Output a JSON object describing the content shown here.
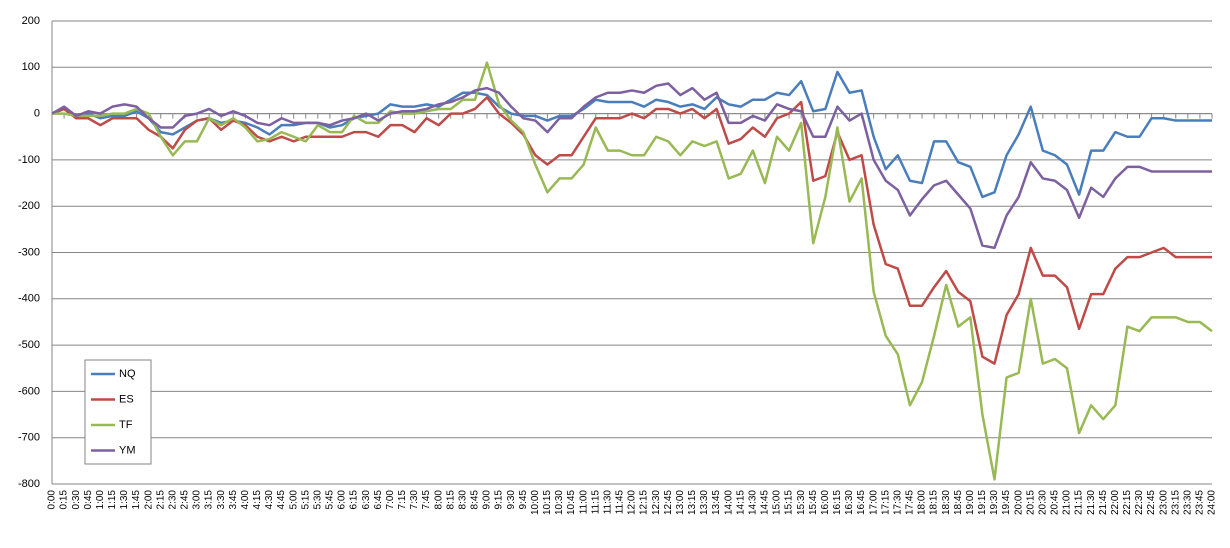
{
  "chart_data": {
    "type": "line",
    "categories": [
      "0:00",
      "0:15",
      "0:30",
      "0:45",
      "1:00",
      "1:15",
      "1:30",
      "1:45",
      "2:00",
      "2:15",
      "2:30",
      "2:45",
      "3:00",
      "3:15",
      "3:30",
      "3:45",
      "4:00",
      "4:15",
      "4:30",
      "4:45",
      "5:00",
      "5:15",
      "5:30",
      "5:45",
      "6:00",
      "6:15",
      "6:30",
      "6:45",
      "7:00",
      "7:15",
      "7:30",
      "7:45",
      "8:00",
      "8:15",
      "8:30",
      "8:45",
      "9:00",
      "9:15",
      "9:30",
      "9:45",
      "10:00",
      "10:15",
      "10:30",
      "10:45",
      "11:00",
      "11:15",
      "11:30",
      "11:45",
      "12:00",
      "12:15",
      "12:30",
      "12:45",
      "13:00",
      "13:15",
      "13:30",
      "13:45",
      "14:00",
      "14:15",
      "14:30",
      "14:45",
      "15:00",
      "15:15",
      "15:30",
      "15:45",
      "16:00",
      "16:15",
      "16:30",
      "16:45",
      "17:00",
      "17:15",
      "17:30",
      "17:45",
      "18:00",
      "18:15",
      "18:30",
      "18:45",
      "19:00",
      "19:15",
      "19:30",
      "19:45",
      "20:00",
      "20:15",
      "20:30",
      "20:45",
      "21:00",
      "21:15",
      "21:30",
      "21:45",
      "22:00",
      "22:15",
      "22:30",
      "22:45",
      "23:00",
      "23:15",
      "23:30",
      "23:45",
      "24:00"
    ],
    "series": [
      {
        "name": "NQ",
        "color": "#4a7ebb",
        "values": [
          0,
          10,
          -5,
          0,
          -10,
          -5,
          -5,
          5,
          -10,
          -40,
          -45,
          -30,
          -15,
          -10,
          -20,
          -15,
          -20,
          -30,
          -45,
          -25,
          -25,
          -20,
          -20,
          -30,
          -25,
          -10,
          -5,
          0,
          20,
          15,
          15,
          20,
          15,
          30,
          45,
          45,
          40,
          15,
          0,
          -5,
          -5,
          -15,
          -5,
          -5,
          10,
          30,
          25,
          25,
          25,
          15,
          30,
          25,
          15,
          20,
          10,
          35,
          20,
          15,
          30,
          30,
          45,
          40,
          70,
          5,
          10,
          90,
          45,
          50,
          -50,
          -120,
          -90,
          -145,
          -150,
          -60,
          -60,
          -105,
          -115,
          -180,
          -170,
          -90,
          -45,
          15,
          -80,
          -90,
          -110,
          -175,
          -80,
          -80,
          -40,
          -50,
          -50,
          -10,
          -10,
          -15,
          -15,
          -15,
          -15
        ]
      },
      {
        "name": "ES",
        "color": "#be4b48",
        "values": [
          0,
          10,
          -10,
          -10,
          -25,
          -10,
          -10,
          -10,
          -35,
          -50,
          -75,
          -35,
          -15,
          -10,
          -35,
          -15,
          -25,
          -50,
          -60,
          -50,
          -60,
          -50,
          -50,
          -50,
          -50,
          -40,
          -40,
          -50,
          -25,
          -25,
          -40,
          -10,
          -25,
          0,
          0,
          10,
          35,
          0,
          -20,
          -45,
          -90,
          -110,
          -90,
          -90,
          -50,
          -10,
          -10,
          -10,
          0,
          -10,
          10,
          10,
          0,
          10,
          -10,
          10,
          -65,
          -55,
          -30,
          -50,
          -10,
          0,
          25,
          -145,
          -135,
          -40,
          -100,
          -90,
          -240,
          -325,
          -335,
          -415,
          -415,
          -375,
          -340,
          -385,
          -405,
          -525,
          -540,
          -435,
          -390,
          -290,
          -350,
          -350,
          -375,
          -465,
          -390,
          -390,
          -335,
          -310,
          -310,
          -300,
          -290,
          -310,
          -310,
          -310,
          -310
        ]
      },
      {
        "name": "TF",
        "color": "#98b954",
        "values": [
          0,
          0,
          -5,
          -5,
          -5,
          0,
          0,
          10,
          0,
          -50,
          -90,
          -60,
          -60,
          -10,
          -25,
          -10,
          -30,
          -60,
          -55,
          -40,
          -50,
          -60,
          -25,
          -40,
          -40,
          -5,
          -20,
          -20,
          5,
          0,
          0,
          5,
          10,
          10,
          30,
          30,
          110,
          20,
          -15,
          -40,
          -110,
          -170,
          -140,
          -140,
          -110,
          -30,
          -80,
          -80,
          -90,
          -90,
          -50,
          -60,
          -90,
          -60,
          -70,
          -60,
          -140,
          -130,
          -80,
          -150,
          -50,
          -80,
          -20,
          -280,
          -180,
          -30,
          -190,
          -140,
          -385,
          -480,
          -520,
          -630,
          -580,
          -480,
          -370,
          -460,
          -440,
          -650,
          -790,
          -570,
          -560,
          -400,
          -540,
          -530,
          -550,
          -690,
          -630,
          -660,
          -630,
          -460,
          -470,
          -440,
          -440,
          -440,
          -450,
          -450,
          -470
        ]
      },
      {
        "name": "YM",
        "color": "#7d60a0",
        "values": [
          0,
          15,
          -5,
          5,
          0,
          15,
          20,
          15,
          -10,
          -30,
          -30,
          -5,
          0,
          10,
          -5,
          5,
          -5,
          -20,
          -25,
          -10,
          -20,
          -20,
          -20,
          -25,
          -15,
          -10,
          0,
          -15,
          0,
          5,
          5,
          10,
          20,
          25,
          35,
          50,
          55,
          45,
          15,
          -10,
          -15,
          -40,
          -10,
          -10,
          15,
          35,
          45,
          45,
          50,
          45,
          60,
          65,
          40,
          55,
          30,
          45,
          -20,
          -20,
          -5,
          -15,
          20,
          10,
          5,
          -50,
          -50,
          15,
          -15,
          0,
          -100,
          -145,
          -165,
          -220,
          -185,
          -155,
          -145,
          -175,
          -205,
          -285,
          -290,
          -220,
          -180,
          -105,
          -140,
          -145,
          -165,
          -225,
          -160,
          -180,
          -140,
          -115,
          -115,
          -125,
          -125,
          -125,
          -125,
          -125,
          -125
        ]
      }
    ],
    "ylim": [
      -800,
      200
    ],
    "yticks": [
      -800,
      -700,
      -600,
      -500,
      -400,
      -300,
      -200,
      -100,
      0,
      100,
      200
    ],
    "grid": true,
    "legend": "lower left"
  }
}
